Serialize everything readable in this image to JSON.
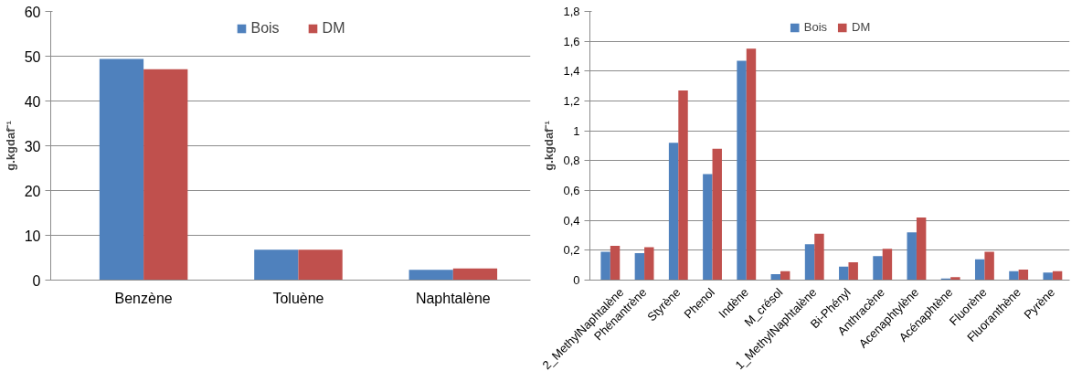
{
  "chart_data": [
    {
      "type": "bar",
      "ylabel": "g.kgdaf⁻¹",
      "categories": [
        "Benzène",
        "Toluène",
        "Naphtalène"
      ],
      "series": [
        {
          "name": "Bois",
          "color": "#4f81bd",
          "values": [
            49.4,
            6.8,
            2.3
          ]
        },
        {
          "name": "DM",
          "color": "#c0504d",
          "values": [
            47.1,
            6.8,
            2.6
          ]
        }
      ],
      "ylim": [
        0,
        60
      ],
      "yticks": [
        0,
        10,
        20,
        30,
        40,
        50,
        60
      ],
      "grid": "y",
      "legend": "top"
    },
    {
      "type": "bar",
      "ylabel": "g.kgdaf⁻¹",
      "categories": [
        "2_MethylNaphtalène",
        "Phénantrène",
        "Styrène",
        "Phenol",
        "Indène",
        "M_crésol",
        "1_MethylNaphtalène",
        "Bi-Phényl",
        "Anthracène",
        "Acenaphtylène",
        "Acénaphtène",
        "Fluorène",
        "Fluoranthène",
        "Pyrène"
      ],
      "series": [
        {
          "name": "Bois",
          "color": "#4f81bd",
          "values": [
            0.19,
            0.18,
            0.92,
            0.71,
            1.47,
            0.04,
            0.24,
            0.09,
            0.16,
            0.32,
            0.01,
            0.14,
            0.06,
            0.05
          ]
        },
        {
          "name": "DM",
          "color": "#c0504d",
          "values": [
            0.23,
            0.22,
            1.27,
            0.88,
            1.55,
            0.06,
            0.31,
            0.12,
            0.21,
            0.42,
            0.02,
            0.19,
            0.07,
            0.06
          ]
        }
      ],
      "ylim": [
        0,
        1.8
      ],
      "yticks": [
        0,
        {
          "value": 0.2,
          "label": "0,2"
        },
        {
          "value": 0.4,
          "label": "0,4"
        },
        {
          "value": 0.6,
          "label": "0,6"
        },
        {
          "value": 0.8,
          "label": "0,8"
        },
        1,
        {
          "value": 1.2,
          "label": "1,2"
        },
        {
          "value": 1.4,
          "label": "1,4"
        },
        {
          "value": 1.6,
          "label": "1,6"
        },
        {
          "value": 1.8,
          "label": "1,8"
        }
      ],
      "grid": "y",
      "legend": "top"
    }
  ]
}
